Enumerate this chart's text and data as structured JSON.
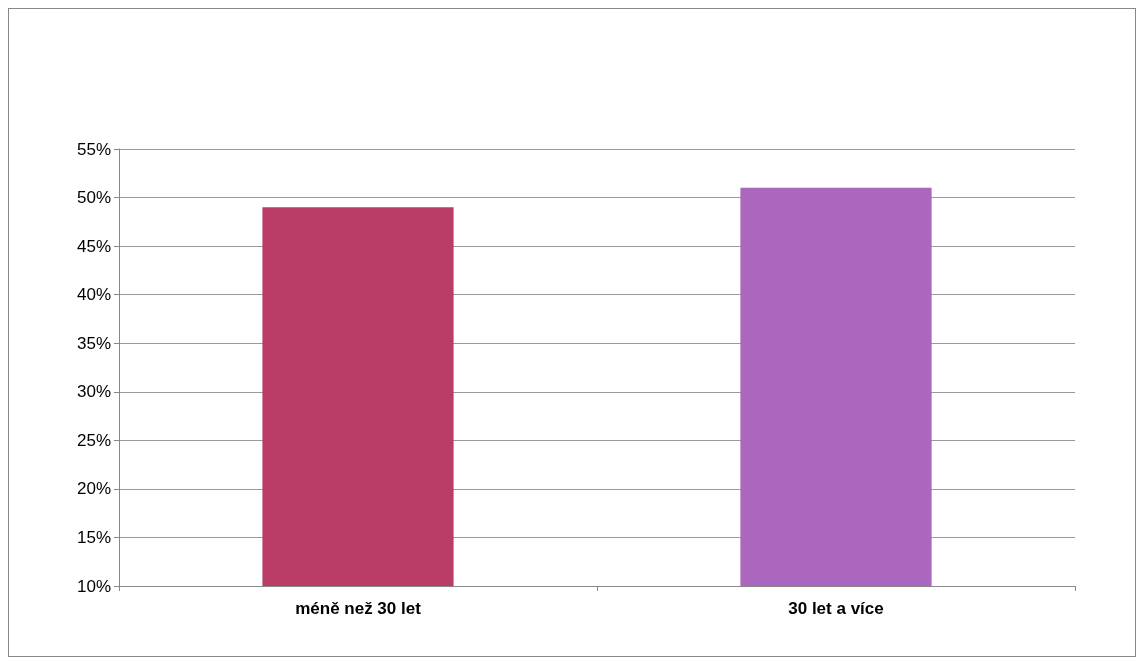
{
  "chart_data": {
    "type": "bar",
    "categories": [
      "méně než 30 let",
      "30 let a více"
    ],
    "values": [
      49,
      51
    ],
    "colors": [
      "#b93d66",
      "#ab66bd"
    ],
    "ylim": [
      10,
      55
    ],
    "yticks": [
      {
        "value": 10,
        "label": "10%"
      },
      {
        "value": 15,
        "label": "15%"
      },
      {
        "value": 20,
        "label": "20%"
      },
      {
        "value": 25,
        "label": "25%"
      },
      {
        "value": 30,
        "label": "30%"
      },
      {
        "value": 35,
        "label": "35%"
      },
      {
        "value": 40,
        "label": "40%"
      },
      {
        "value": 45,
        "label": "45%"
      },
      {
        "value": 50,
        "label": "50%"
      },
      {
        "value": 55,
        "label": "55%"
      }
    ],
    "grid": true
  }
}
